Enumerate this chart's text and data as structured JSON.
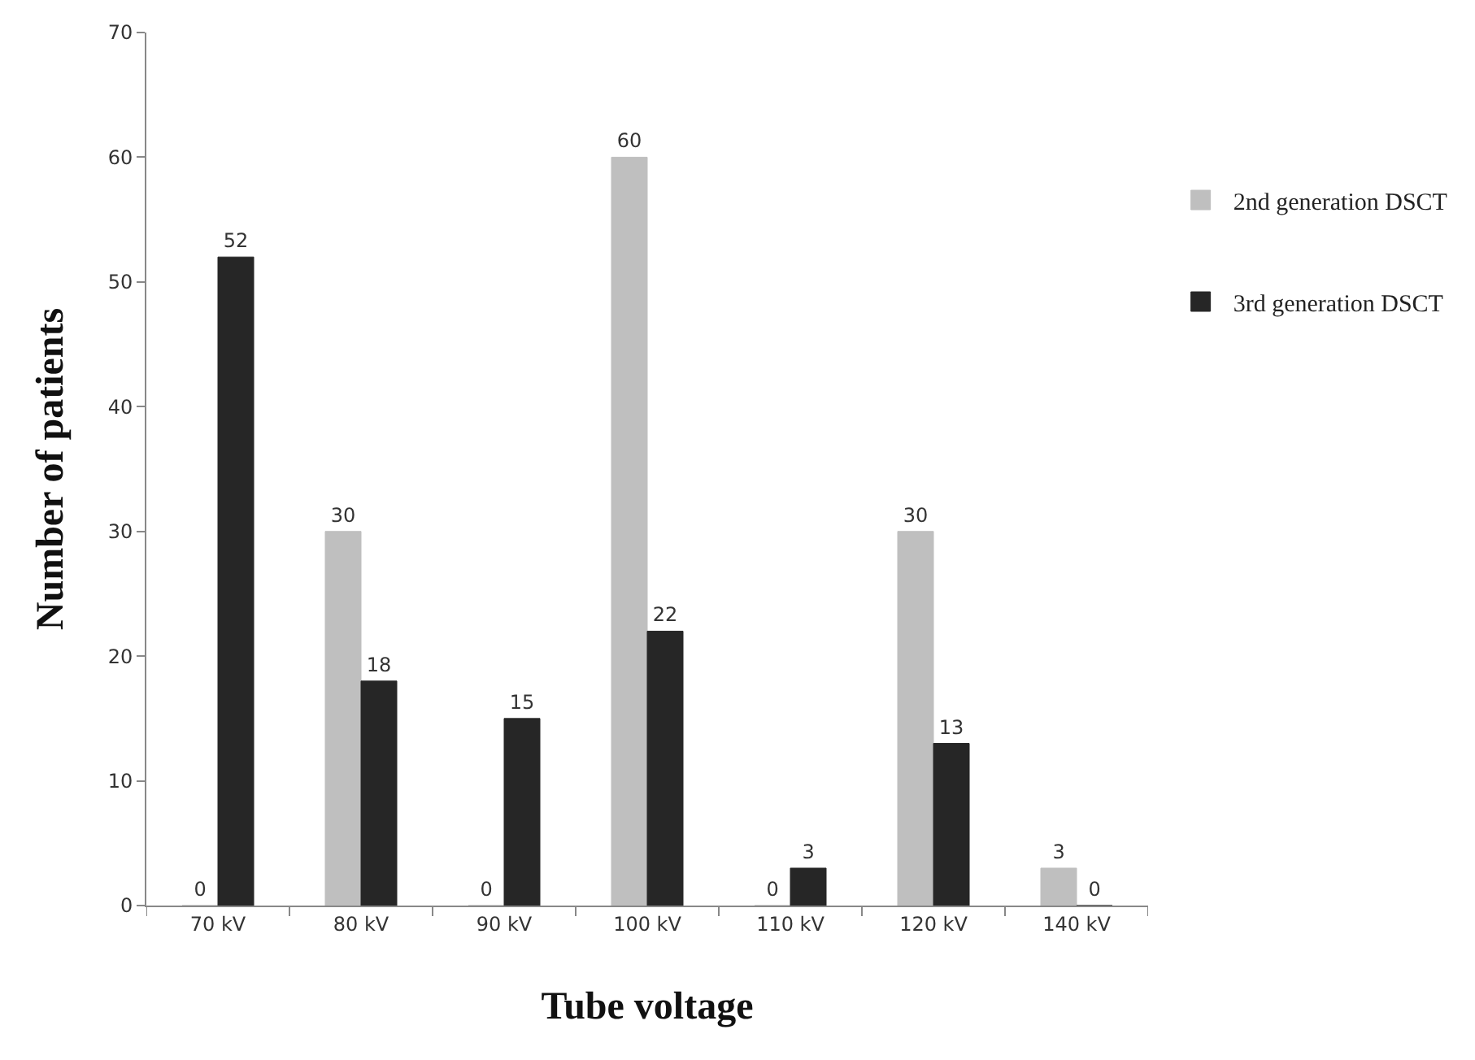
{
  "chart_data": {
    "type": "bar",
    "xlabel": "Tube voltage",
    "ylabel": "Number of patients",
    "categories": [
      "70 kV",
      "80 kV",
      "90 kV",
      "100 kV",
      "110 kV",
      "120 kV",
      "140 kV"
    ],
    "series": [
      {
        "name": "2nd generation DSCT",
        "color": "#bfbfbf",
        "values": [
          0,
          30,
          0,
          60,
          0,
          30,
          3
        ]
      },
      {
        "name": "3rd generation DSCT",
        "color": "#262626",
        "values": [
          52,
          18,
          15,
          22,
          3,
          13,
          0
        ]
      }
    ],
    "ylim": [
      0,
      70
    ],
    "yticks": [
      0,
      10,
      20,
      30,
      40,
      50,
      60,
      70
    ],
    "grid": false,
    "legend": "right",
    "data_labels": true
  }
}
